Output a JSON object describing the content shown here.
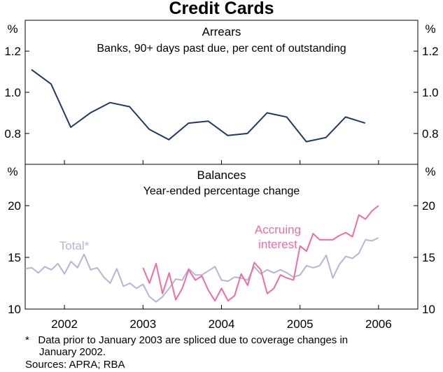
{
  "title": "Credit Cards",
  "x_ticks": [
    "2002",
    "2003",
    "2004",
    "2005",
    "2006"
  ],
  "footnote_marker": "*",
  "footnote_line1": "Data prior to January 2003 are spliced due to coverage changes in",
  "footnote_line2": "January 2002.",
  "sources": "Sources: APRA; RBA",
  "colors": {
    "arrears": "#1f3864",
    "total": "#b8b4d6",
    "accruing": "#ee6ea4",
    "frame": "#000000"
  },
  "chart_data": [
    {
      "type": "line",
      "title": "Arrears",
      "subtitle": "Banks, 90+ days past due, per cent of outstanding",
      "ylabel_left": "%",
      "ylabel_right": "%",
      "ylim": [
        0.65,
        1.35
      ],
      "yticks": [
        0.8,
        1.0,
        1.2
      ],
      "ytick_labels": [
        "0.8",
        "1.0",
        "1.2"
      ],
      "xlim": [
        2001.5,
        2006.5
      ],
      "series": [
        {
          "name": "",
          "x": [
            2001.58,
            2001.83,
            2002.08,
            2002.33,
            2002.58,
            2002.83,
            2003.08,
            2003.33,
            2003.58,
            2003.83,
            2004.08,
            2004.33,
            2004.58,
            2004.83,
            2005.08,
            2005.33,
            2005.58,
            2005.83
          ],
          "values": [
            1.11,
            1.04,
            0.83,
            0.9,
            0.95,
            0.93,
            0.82,
            0.77,
            0.85,
            0.86,
            0.79,
            0.8,
            0.9,
            0.88,
            0.76,
            0.78,
            0.88,
            0.85
          ]
        }
      ]
    },
    {
      "type": "line",
      "title": "Balances",
      "subtitle": "Year-ended percentage change",
      "ylabel_left": "%",
      "ylabel_right": "%",
      "ylim": [
        10,
        24
      ],
      "yticks": [
        10,
        15,
        20
      ],
      "ytick_labels": [
        "10",
        "15",
        "20"
      ],
      "xlim": [
        2001.5,
        2006.5
      ],
      "series": [
        {
          "name": "Total*",
          "x": [
            2001.5,
            2001.583,
            2001.667,
            2001.75,
            2001.833,
            2001.917,
            2002.0,
            2002.083,
            2002.167,
            2002.25,
            2002.333,
            2002.417,
            2002.5,
            2002.583,
            2002.667,
            2002.75,
            2002.833,
            2002.917,
            2003.0,
            2003.083,
            2003.167,
            2003.25,
            2003.333,
            2003.417,
            2003.5,
            2003.583,
            2003.667,
            2003.75,
            2003.833,
            2003.917,
            2004.0,
            2004.083,
            2004.167,
            2004.25,
            2004.333,
            2004.417,
            2004.5,
            2004.583,
            2004.667,
            2004.75,
            2004.833,
            2004.917,
            2005.0,
            2005.083,
            2005.167,
            2005.25,
            2005.333,
            2005.417,
            2005.5,
            2005.583,
            2005.667,
            2005.75,
            2005.833,
            2005.917,
            2006.0
          ],
          "values": [
            13.9,
            14.0,
            13.5,
            14.1,
            13.8,
            14.4,
            13.4,
            14.6,
            14.0,
            15.3,
            13.8,
            14.0,
            13.1,
            12.5,
            13.9,
            12.2,
            12.5,
            12.0,
            12.4,
            11.2,
            10.7,
            11.2,
            12.0,
            12.9,
            12.8,
            13.9,
            13.3,
            13.3,
            13.7,
            14.1,
            12.8,
            12.7,
            13.1,
            13.0,
            12.8,
            14.1,
            13.4,
            13.8,
            13.5,
            13.8,
            13.5,
            13.1,
            13.3,
            14.2,
            14.0,
            14.2,
            15.2,
            13.0,
            14.3,
            15.1,
            14.9,
            15.4,
            16.7,
            16.6,
            16.9
          ]
        },
        {
          "name": "Accruing interest",
          "x": [
            2003.0,
            2003.083,
            2003.167,
            2003.25,
            2003.333,
            2003.417,
            2003.5,
            2003.583,
            2003.667,
            2003.75,
            2003.833,
            2003.917,
            2004.0,
            2004.083,
            2004.167,
            2004.25,
            2004.333,
            2004.417,
            2004.5,
            2004.583,
            2004.667,
            2004.75,
            2004.833,
            2004.917,
            2005.0,
            2005.083,
            2005.167,
            2005.25,
            2005.333,
            2005.417,
            2005.5,
            2005.583,
            2005.667,
            2005.75,
            2005.833,
            2005.917,
            2006.0
          ],
          "values": [
            14.0,
            12.5,
            14.4,
            11.5,
            13.5,
            10.9,
            12.0,
            13.8,
            12.8,
            13.2,
            11.8,
            10.8,
            12.0,
            10.8,
            11.3,
            13.4,
            12.3,
            14.5,
            13.8,
            11.5,
            12.0,
            13.3,
            13.0,
            12.8,
            16.1,
            15.6,
            17.3,
            16.7,
            16.7,
            16.7,
            17.1,
            17.4,
            17.0,
            19.1,
            18.7,
            19.5,
            20.0
          ]
        }
      ],
      "annotations": [
        {
          "text": "Total*",
          "series": "Total*"
        },
        {
          "text": "Accruing",
          "series": "Accruing interest"
        },
        {
          "text": "interest",
          "series": "Accruing interest"
        }
      ]
    }
  ]
}
